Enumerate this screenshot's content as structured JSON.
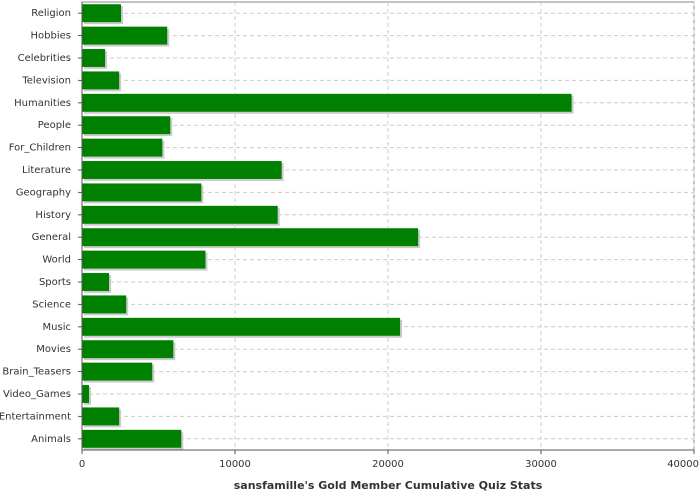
{
  "chart_data": {
    "type": "hbar",
    "x_label": "sansfamille's Gold Member Cumulative Quiz Stats",
    "categories": [
      "Religion",
      "Hobbies",
      "Celebrities",
      "Television",
      "Humanities",
      "People",
      "For_Children",
      "Literature",
      "Geography",
      "History",
      "General",
      "World",
      "Sports",
      "Science",
      "Music",
      "Movies",
      "Brain_Teasers",
      "Video_Games",
      "Entertainment",
      "Animals"
    ],
    "values": [
      2550,
      5570,
      1510,
      2430,
      32000,
      5770,
      5250,
      13050,
      7800,
      12790,
      21970,
      8070,
      1770,
      2890,
      20790,
      5970,
      4590,
      460,
      2430,
      6490
    ],
    "color": "#008000",
    "xlim": [
      0,
      40000
    ],
    "xticks": [
      0,
      10000,
      20000,
      30000,
      40000
    ],
    "grid": true
  }
}
